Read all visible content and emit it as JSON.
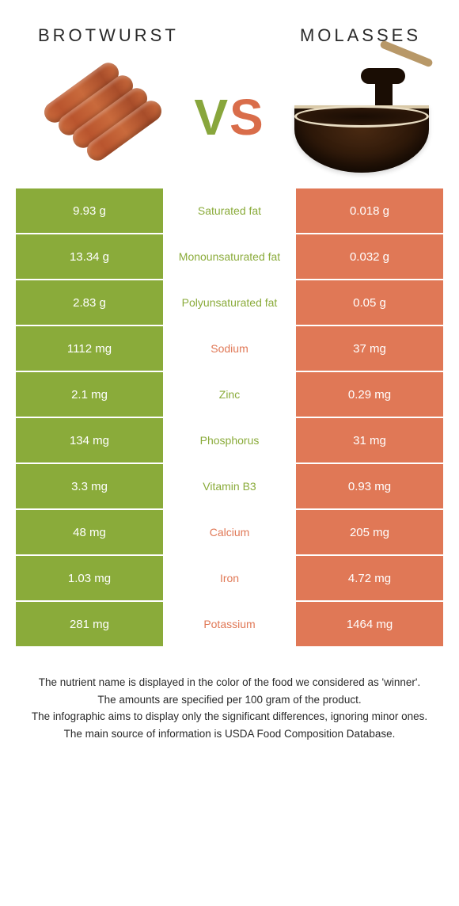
{
  "titleLeft": "BROTWURST",
  "titleRight": "MOLASSES",
  "vs": {
    "v": "V",
    "s": "S"
  },
  "colors": {
    "left": "#8aab3a",
    "right": "#e07856",
    "text": "#2a2a2a",
    "white": "#ffffff"
  },
  "rows": [
    {
      "label": "Saturated fat",
      "left": "9.93 g",
      "right": "0.018 g",
      "winner": "left"
    },
    {
      "label": "Monounsaturated fat",
      "left": "13.34 g",
      "right": "0.032 g",
      "winner": "left"
    },
    {
      "label": "Polyunsaturated fat",
      "left": "2.83 g",
      "right": "0.05 g",
      "winner": "left"
    },
    {
      "label": "Sodium",
      "left": "1112 mg",
      "right": "37 mg",
      "winner": "right"
    },
    {
      "label": "Zinc",
      "left": "2.1 mg",
      "right": "0.29 mg",
      "winner": "left"
    },
    {
      "label": "Phosphorus",
      "left": "134 mg",
      "right": "31 mg",
      "winner": "left"
    },
    {
      "label": "Vitamin B3",
      "left": "3.3 mg",
      "right": "0.93 mg",
      "winner": "left"
    },
    {
      "label": "Calcium",
      "left": "48 mg",
      "right": "205 mg",
      "winner": "right"
    },
    {
      "label": "Iron",
      "left": "1.03 mg",
      "right": "4.72 mg",
      "winner": "right"
    },
    {
      "label": "Potassium",
      "left": "281 mg",
      "right": "1464 mg",
      "winner": "right"
    }
  ],
  "notes": [
    "The nutrient name is displayed in the color of the food we considered as 'winner'.",
    "The amounts are specified per 100 gram of the product.",
    "The infographic aims to display only the significant differences, ignoring minor ones.",
    "The main source of information is USDA Food Composition Database."
  ]
}
